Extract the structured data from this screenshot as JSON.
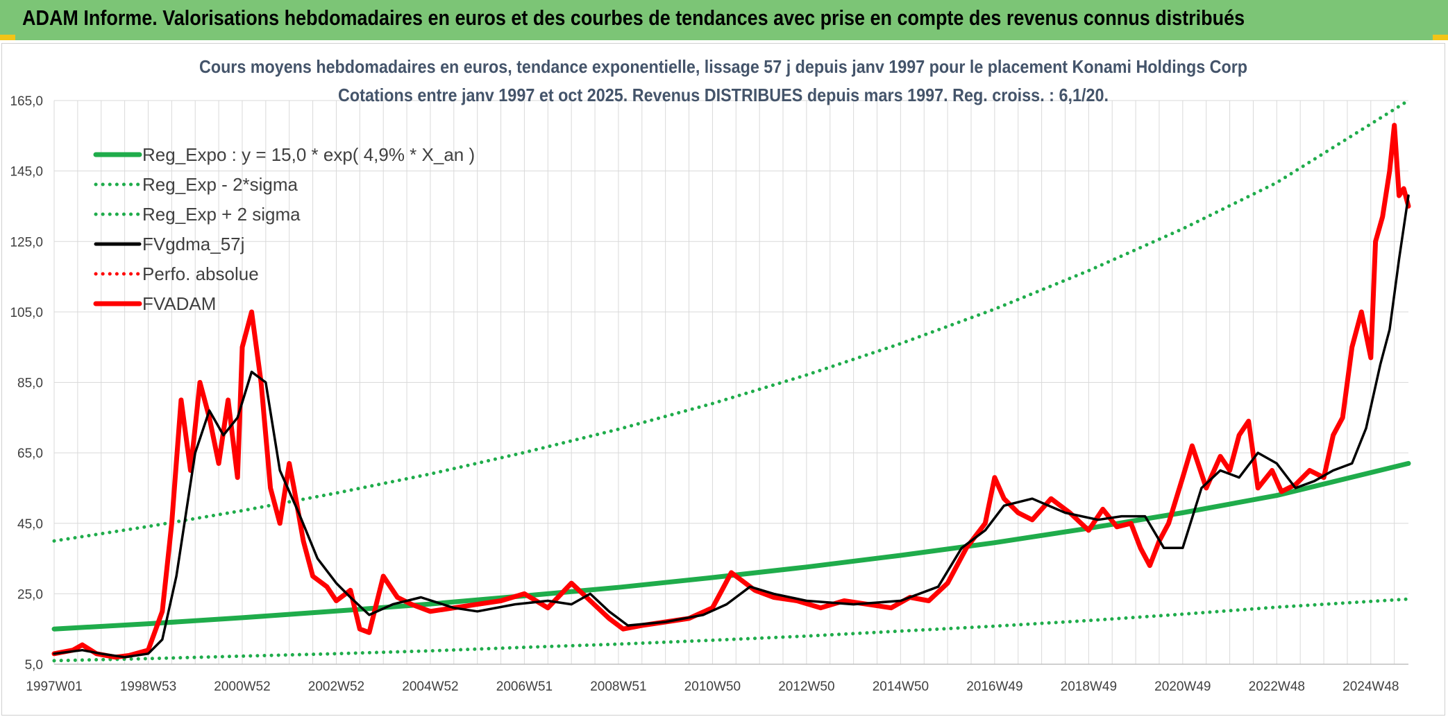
{
  "banner": {
    "title": "ADAM Informe. Valorisations hebdomadaires en euros et des courbes de tendances avec prise en compte des revenus connus distribués"
  },
  "colors": {
    "banner_bg": "#7cc576",
    "reg_green": "#1fac4b",
    "gdma_black": "#000000",
    "adam_red": "#ff0000",
    "grid": "#d9d9d9"
  },
  "chart_data": {
    "type": "line",
    "title": "Cours moyens hebdomadaires en euros, tendance exponentielle, lissage 57 j depuis janv 1997 pour le placement Konami Holdings Corp",
    "subtitle": "Cotations entre janv 1997 et oct 2025. Revenus DISTRIBUES depuis mars 1997. Reg. croiss. : 6,1/20.",
    "xlabel": "",
    "ylabel": "",
    "ylim": [
      5,
      165
    ],
    "xlim": [
      1997.0,
      2025.8
    ],
    "y_ticks": [
      "5,0",
      "25,0",
      "45,0",
      "65,0",
      "85,0",
      "105,0",
      "125,0",
      "145,0",
      "165,0"
    ],
    "x_ticks": [
      {
        "label": "1997W01",
        "x": 1997.0
      },
      {
        "label": "1998W53",
        "x": 1999.0
      },
      {
        "label": "2000W52",
        "x": 2001.0
      },
      {
        "label": "2002W52",
        "x": 2003.0
      },
      {
        "label": "2004W52",
        "x": 2005.0
      },
      {
        "label": "2006W51",
        "x": 2007.0
      },
      {
        "label": "2008W51",
        "x": 2009.0
      },
      {
        "label": "2010W50",
        "x": 2011.0
      },
      {
        "label": "2012W50",
        "x": 2013.0
      },
      {
        "label": "2014W50",
        "x": 2015.0
      },
      {
        "label": "2016W49",
        "x": 2017.0
      },
      {
        "label": "2018W49",
        "x": 2019.0
      },
      {
        "label": "2020W49",
        "x": 2021.0
      },
      {
        "label": "2022W48",
        "x": 2023.0
      },
      {
        "label": "2024W48",
        "x": 2025.0
      }
    ],
    "grid": true,
    "legend_position": "top-left",
    "series": [
      {
        "name": "Reg_Expo : y = 15,0 * exp( 4,9% *  X_an )",
        "style": "solid-thick",
        "color": "#1fac4b",
        "x": [
          1997,
          1999,
          2001,
          2003,
          2005,
          2007,
          2009,
          2011,
          2013,
          2015,
          2017,
          2019,
          2021,
          2023,
          2025.8
        ],
        "y": [
          15.0,
          16.5,
          18.2,
          20.1,
          22.1,
          24.4,
          26.8,
          29.6,
          32.6,
          35.9,
          39.5,
          43.6,
          48.0,
          52.9,
          62.0
        ]
      },
      {
        "name": "Reg_Exp - 2*sigma",
        "style": "dotted",
        "color": "#1fac4b",
        "x": [
          1997,
          1999,
          2001,
          2003,
          2005,
          2007,
          2009,
          2011,
          2013,
          2015,
          2017,
          2019,
          2021,
          2023,
          2025.8
        ],
        "y": [
          6.0,
          6.6,
          7.3,
          8.0,
          8.8,
          9.8,
          10.7,
          11.8,
          13.0,
          14.4,
          15.8,
          17.4,
          19.2,
          21.2,
          23.5
        ]
      },
      {
        "name": "Reg_Exp + 2 sigma",
        "style": "dotted",
        "color": "#1fac4b",
        "x": [
          1997,
          1999,
          2001,
          2003,
          2005,
          2007,
          2009,
          2011,
          2013,
          2015,
          2017,
          2019,
          2021,
          2023,
          2025.8
        ],
        "y": [
          40.0,
          44.1,
          48.6,
          53.6,
          59.0,
          65.1,
          71.7,
          79.0,
          87.1,
          96.0,
          105.8,
          116.7,
          128.6,
          141.7,
          165.0
        ]
      },
      {
        "name": "FVgdma_57j",
        "style": "solid",
        "color": "#000000",
        "x": [
          1997.0,
          1997.6,
          1998.0,
          1998.5,
          1999.0,
          1999.3,
          1999.6,
          2000.0,
          2000.3,
          2000.6,
          2000.9,
          2001.2,
          2001.5,
          2001.8,
          2002.2,
          2002.6,
          2003.0,
          2003.3,
          2003.7,
          2004.2,
          2004.8,
          2005.5,
          2006.0,
          2006.8,
          2007.5,
          2008.0,
          2008.4,
          2008.8,
          2009.2,
          2010.0,
          2010.8,
          2011.3,
          2011.8,
          2012.3,
          2013.0,
          2014.0,
          2015.0,
          2015.8,
          2016.3,
          2016.8,
          2017.2,
          2017.8,
          2018.5,
          2019.2,
          2019.7,
          2020.2,
          2020.6,
          2021.0,
          2021.4,
          2021.8,
          2022.2,
          2022.6,
          2023.0,
          2023.4,
          2023.8,
          2024.2,
          2024.6,
          2024.9,
          2025.2,
          2025.4,
          2025.6,
          2025.8
        ],
        "y": [
          8.0,
          9.0,
          8.0,
          7.0,
          8.0,
          12.0,
          30.0,
          65.0,
          77.0,
          70.0,
          75.0,
          88.0,
          85.0,
          60.0,
          48.0,
          35.0,
          28.0,
          24.0,
          19.0,
          22.0,
          24.0,
          21.0,
          20.0,
          22.0,
          23.0,
          22.0,
          25.0,
          20.0,
          16.0,
          17.0,
          19.0,
          22.0,
          27.0,
          25.0,
          23.0,
          22.0,
          23.0,
          27.0,
          38.0,
          43.0,
          50.0,
          52.0,
          48.0,
          46.0,
          47.0,
          47.0,
          38.0,
          38.0,
          55.0,
          60.0,
          58.0,
          65.0,
          62.0,
          55.0,
          57.0,
          60.0,
          62.0,
          72.0,
          90.0,
          100.0,
          120.0,
          138.0
        ]
      },
      {
        "name": "Perfo. absolue",
        "style": "dotted",
        "color": "#ff0000",
        "x": [],
        "y": []
      },
      {
        "name": "FVADAM",
        "style": "solid-thick",
        "color": "#ff0000",
        "x": [
          1997.0,
          1997.4,
          1997.6,
          1997.9,
          1998.3,
          1998.6,
          1999.0,
          1999.3,
          1999.5,
          1999.7,
          1999.9,
          2000.1,
          2000.3,
          2000.5,
          2000.7,
          2000.9,
          2001.0,
          2001.2,
          2001.4,
          2001.6,
          2001.8,
          2002.0,
          2002.1,
          2002.3,
          2002.5,
          2002.8,
          2003.0,
          2003.3,
          2003.5,
          2003.7,
          2004.0,
          2004.3,
          2004.6,
          2005.0,
          2005.5,
          2006.0,
          2006.5,
          2007.0,
          2007.5,
          2008.0,
          2008.4,
          2008.8,
          2009.1,
          2009.5,
          2010.0,
          2010.5,
          2011.0,
          2011.2,
          2011.4,
          2011.6,
          2011.9,
          2012.3,
          2012.8,
          2013.3,
          2013.8,
          2014.3,
          2014.8,
          2015.2,
          2015.6,
          2016.0,
          2016.4,
          2016.8,
          2017.0,
          2017.2,
          2017.5,
          2017.8,
          2018.2,
          2018.6,
          2019.0,
          2019.3,
          2019.6,
          2019.9,
          2020.1,
          2020.3,
          2020.5,
          2020.7,
          2021.0,
          2021.2,
          2021.5,
          2021.8,
          2022.0,
          2022.2,
          2022.4,
          2022.6,
          2022.9,
          2023.1,
          2023.4,
          2023.7,
          2024.0,
          2024.2,
          2024.4,
          2024.6,
          2024.8,
          2025.0,
          2025.1,
          2025.25,
          2025.4,
          2025.5,
          2025.6,
          2025.7,
          2025.8
        ],
        "y": [
          8.0,
          9.0,
          10.5,
          8.0,
          7.0,
          7.5,
          9.0,
          20.0,
          45.0,
          80.0,
          60.0,
          85.0,
          75.0,
          62.0,
          80.0,
          58.0,
          95.0,
          105.0,
          85.0,
          55.0,
          45.0,
          62.0,
          55.0,
          40.0,
          30.0,
          27.0,
          23.0,
          26.0,
          15.0,
          14.0,
          30.0,
          24.0,
          22.0,
          20.0,
          21.0,
          22.0,
          23.0,
          25.0,
          21.0,
          28.0,
          23.0,
          18.0,
          15.0,
          16.0,
          17.0,
          18.0,
          21.0,
          26.0,
          31.0,
          29.0,
          26.0,
          24.0,
          23.0,
          21.0,
          23.0,
          22.0,
          21.0,
          24.0,
          23.0,
          28.0,
          38.0,
          45.0,
          58.0,
          52.0,
          48.0,
          46.0,
          52.0,
          48.0,
          43.0,
          49.0,
          44.0,
          45.0,
          38.0,
          33.0,
          40.0,
          45.0,
          58.0,
          67.0,
          55.0,
          64.0,
          60.0,
          70.0,
          74.0,
          55.0,
          60.0,
          54.0,
          56.0,
          60.0,
          58.0,
          70.0,
          75.0,
          95.0,
          105.0,
          92.0,
          125.0,
          132.0,
          145.0,
          158.0,
          138.0,
          140.0,
          135.0
        ]
      }
    ]
  }
}
